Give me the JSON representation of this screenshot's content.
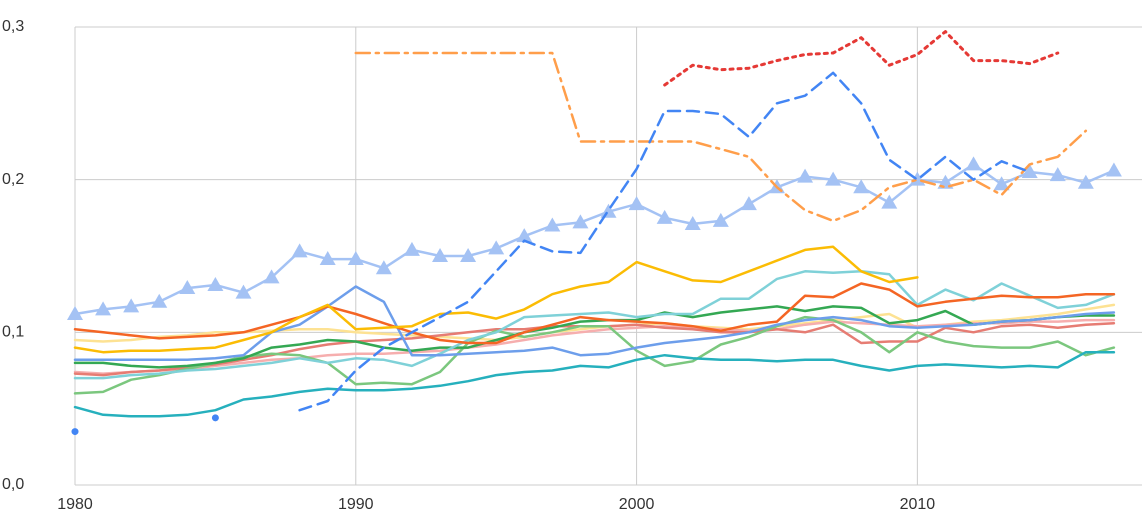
{
  "chart_data": {
    "type": "line",
    "x": [
      1980,
      1981,
      1982,
      1983,
      1984,
      1985,
      1986,
      1987,
      1988,
      1989,
      1990,
      1991,
      1992,
      1993,
      1994,
      1995,
      1996,
      1997,
      1998,
      1999,
      2000,
      2001,
      2002,
      2003,
      2004,
      2005,
      2006,
      2007,
      2008,
      2009,
      2010,
      2011,
      2012,
      2013,
      2014,
      2015,
      2016,
      2017
    ],
    "xlim": [
      1980,
      2018
    ],
    "xticks": [
      1980,
      1990,
      2000,
      2010
    ],
    "ylim": [
      0,
      0.3
    ],
    "yticks": [
      {
        "value": 0,
        "label": "0,0"
      },
      {
        "value": 0.1,
        "label": "0,1"
      },
      {
        "value": 0.2,
        "label": "0,2"
      },
      {
        "value": 0.3,
        "label": "0,3"
      }
    ],
    "grid": true,
    "series": [
      {
        "color": "#fde293",
        "values": [
          0.095,
          0.094,
          0.095,
          0.097,
          0.098,
          0.1,
          0.1,
          0.101,
          0.102,
          0.102,
          0.1,
          0.099,
          0.098,
          0.097,
          0.096,
          0.095,
          0.097,
          0.1,
          0.102,
          0.104,
          0.105,
          0.106,
          0.104,
          0.103,
          0.102,
          0.104,
          0.106,
          0.108,
          0.11,
          0.112,
          0.103,
          0.105,
          0.107,
          0.108,
          0.11,
          0.112,
          0.115,
          0.118
        ]
      },
      {
        "color": "#f6aeae",
        "values": [
          0.074,
          0.073,
          0.074,
          0.075,
          0.076,
          0.078,
          0.08,
          0.082,
          0.083,
          0.085,
          0.086,
          0.086,
          0.087,
          0.088,
          0.09,
          0.092,
          0.095,
          0.098,
          0.1,
          0.102,
          0.103,
          0.104,
          0.103,
          0.102,
          0.101,
          0.102,
          0.105,
          0.107,
          0.106,
          0.105,
          0.104,
          0.105,
          0.106,
          0.106,
          0.107,
          0.107,
          0.108,
          0.108
        ]
      },
      {
        "color": "#e67c73",
        "values": [
          0.073,
          0.072,
          0.074,
          0.075,
          0.077,
          0.079,
          0.082,
          0.085,
          0.089,
          0.092,
          0.094,
          0.095,
          0.096,
          0.098,
          0.1,
          0.102,
          0.102,
          0.104,
          0.104,
          0.104,
          0.105,
          0.103,
          0.102,
          0.1,
          0.1,
          0.102,
          0.1,
          0.105,
          0.093,
          0.094,
          0.094,
          0.103,
          0.1,
          0.104,
          0.105,
          0.103,
          0.105,
          0.106
        ]
      },
      {
        "color": "#7bc77e",
        "values": [
          0.06,
          0.061,
          0.069,
          0.072,
          0.076,
          0.08,
          0.084,
          0.086,
          0.085,
          0.08,
          0.066,
          0.067,
          0.066,
          0.074,
          0.093,
          0.101,
          0.097,
          0.1,
          0.104,
          0.104,
          0.088,
          0.078,
          0.081,
          0.092,
          0.097,
          0.104,
          0.11,
          0.108,
          0.1,
          0.087,
          0.1,
          0.094,
          0.091,
          0.09,
          0.09,
          0.094,
          0.085,
          0.09
        ]
      },
      {
        "color": "#34a853",
        "values": [
          0.08,
          0.08,
          0.078,
          0.077,
          0.078,
          0.08,
          0.083,
          0.09,
          0.092,
          0.095,
          0.094,
          0.09,
          0.088,
          0.09,
          0.09,
          0.095,
          0.1,
          0.103,
          0.107,
          0.108,
          0.108,
          0.113,
          0.11,
          0.113,
          0.115,
          0.117,
          0.114,
          0.117,
          0.116,
          0.106,
          0.108,
          0.114,
          0.105,
          0.107,
          0.108,
          0.11,
          0.111,
          0.111
        ]
      },
      {
        "color": "#7fd1d8",
        "values": [
          0.07,
          0.07,
          0.072,
          0.073,
          0.075,
          0.076,
          0.078,
          0.08,
          0.083,
          0.08,
          0.083,
          0.082,
          0.078,
          0.086,
          0.095,
          0.1,
          0.11,
          0.111,
          0.112,
          0.113,
          0.11,
          0.112,
          0.112,
          0.122,
          0.122,
          0.135,
          0.14,
          0.139,
          0.14,
          0.138,
          0.118,
          0.128,
          0.121,
          0.132,
          0.124,
          0.116,
          0.118,
          0.125
        ]
      },
      {
        "color": "#26b0bd",
        "values": [
          0.051,
          0.046,
          0.045,
          0.045,
          0.046,
          0.049,
          0.056,
          0.058,
          0.061,
          0.063,
          0.062,
          0.062,
          0.063,
          0.065,
          0.068,
          0.072,
          0.074,
          0.075,
          0.078,
          0.077,
          0.082,
          0.085,
          0.083,
          0.082,
          0.082,
          0.081,
          0.082,
          0.082,
          0.078,
          0.075,
          0.078,
          0.079,
          0.078,
          0.077,
          0.078,
          0.077,
          0.087,
          0.087
        ]
      },
      {
        "color": "#6d9eeb",
        "values": [
          0.082,
          0.082,
          0.082,
          0.082,
          0.082,
          0.083,
          0.085,
          0.1,
          0.105,
          0.117,
          0.13,
          0.12,
          0.085,
          0.085,
          0.086,
          0.087,
          0.088,
          0.09,
          0.085,
          0.086,
          0.09,
          0.093,
          0.095,
          0.097,
          0.1,
          0.105,
          0.108,
          0.11,
          0.108,
          0.104,
          0.103,
          0.104,
          0.105,
          0.107,
          0.108,
          0.11,
          0.112,
          0.113
        ]
      },
      {
        "color": "#f46524",
        "values": [
          0.102,
          0.1,
          0.098,
          0.096,
          0.097,
          0.098,
          0.1,
          0.105,
          0.11,
          0.117,
          0.112,
          0.106,
          0.1,
          0.095,
          0.093,
          0.093,
          0.1,
          0.105,
          0.11,
          0.108,
          0.107,
          0.106,
          0.104,
          0.101,
          0.105,
          0.107,
          0.124,
          0.123,
          0.132,
          0.128,
          0.117,
          0.12,
          0.122,
          0.124,
          0.123,
          0.123,
          0.125,
          0.125
        ]
      },
      {
        "color": "#fbbc04",
        "values": [
          0.09,
          0.087,
          0.088,
          0.088,
          0.089,
          0.09,
          0.095,
          0.1,
          0.11,
          0.118,
          0.102,
          0.103,
          0.104,
          0.112,
          0.113,
          0.109,
          0.115,
          0.125,
          0.13,
          0.133,
          0.146,
          0.14,
          0.134,
          0.133,
          0.14,
          0.147,
          0.154,
          0.156,
          0.14,
          0.133,
          0.136,
          null,
          null,
          null,
          null,
          null,
          null,
          null
        ]
      },
      {
        "color": "#a4c2f4",
        "marker": "triangle",
        "values": [
          0.112,
          0.115,
          0.117,
          0.12,
          0.129,
          0.131,
          0.126,
          0.136,
          0.153,
          0.148,
          0.148,
          0.142,
          0.154,
          0.15,
          0.15,
          0.155,
          0.163,
          0.17,
          0.172,
          0.179,
          0.184,
          0.175,
          0.171,
          0.173,
          0.184,
          0.195,
          0.202,
          0.2,
          0.195,
          0.185,
          0.2,
          0.198,
          0.21,
          0.197,
          0.205,
          0.203,
          0.198,
          0.206
        ]
      },
      {
        "color": "#ff9e4a",
        "dash": "dashdot",
        "values": [
          null,
          null,
          null,
          null,
          null,
          null,
          null,
          null,
          null,
          null,
          0.283,
          0.283,
          0.283,
          0.283,
          0.283,
          0.283,
          0.283,
          0.283,
          0.225,
          0.225,
          0.225,
          0.225,
          0.225,
          0.22,
          0.215,
          0.195,
          0.18,
          0.173,
          0.18,
          0.195,
          0.2,
          0.195,
          0.2,
          0.19,
          0.21,
          0.215,
          0.232,
          null
        ]
      },
      {
        "color": "#e53935",
        "dash": "dotted",
        "values": [
          null,
          null,
          null,
          null,
          null,
          null,
          null,
          null,
          null,
          null,
          null,
          null,
          null,
          null,
          null,
          null,
          null,
          null,
          null,
          null,
          null,
          0.262,
          0.275,
          0.272,
          0.273,
          0.278,
          0.282,
          0.283,
          0.293,
          0.275,
          0.282,
          0.297,
          0.278,
          0.278,
          0.276,
          0.283,
          null,
          null
        ]
      },
      {
        "color": "#4285f4",
        "dash": "dashed",
        "values": [
          0.035,
          null,
          null,
          null,
          null,
          0.044,
          null,
          null,
          0.049,
          0.055,
          0.075,
          0.09,
          0.1,
          0.11,
          0.12,
          0.14,
          0.16,
          0.153,
          0.152,
          0.18,
          0.207,
          0.245,
          0.245,
          0.243,
          0.228,
          0.25,
          0.255,
          0.27,
          0.25,
          0.213,
          0.2,
          0.215,
          0.2,
          0.212,
          0.205,
          null,
          null,
          null
        ]
      }
    ]
  }
}
